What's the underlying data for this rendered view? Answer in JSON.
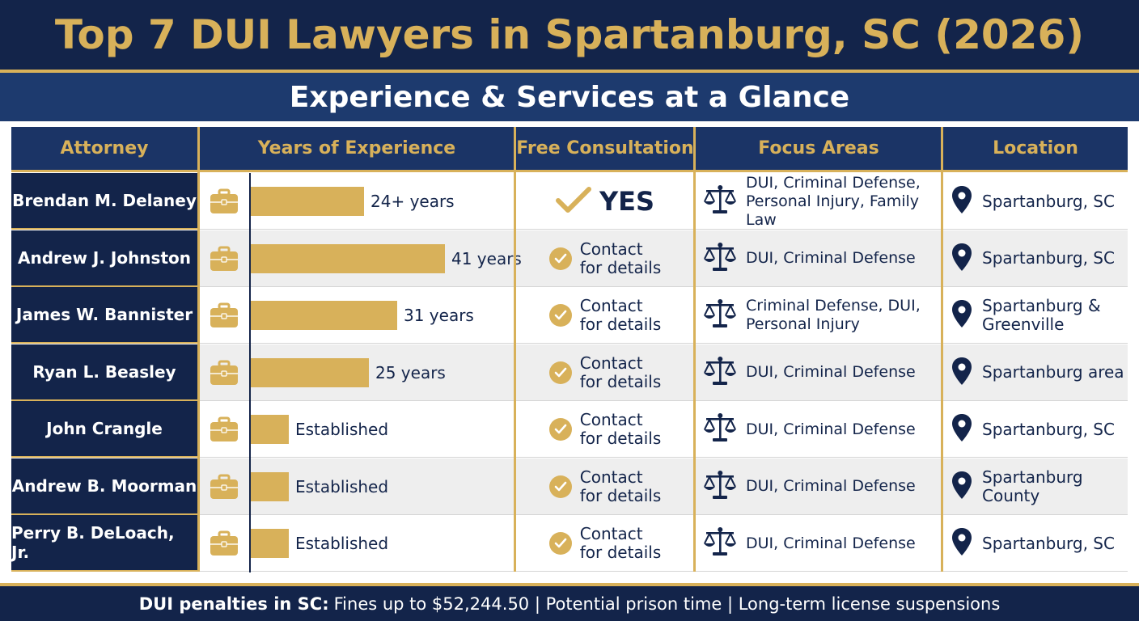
{
  "title": "Top 7 DUI Lawyers in Spartanburg, SC (2026)",
  "subtitle": "Experience & Services at a Glance",
  "colors": {
    "navy": "#13244a",
    "gold": "#d8b15a",
    "row_alt": "#eeeeee"
  },
  "table": {
    "headers": [
      "Attorney",
      "Years of Experience",
      "Free Consultation",
      "Focus Areas",
      "Location"
    ],
    "rows": [
      {
        "attorney": "Brendan M. Delaney",
        "years_label": "24+ years",
        "years_value": 24,
        "consult": [
          "YES"
        ],
        "consult_type": "yes",
        "focus": [
          "DUI, Criminal Defense,",
          "Personal Injury, Family Law"
        ],
        "location": [
          "Spartanburg, SC"
        ]
      },
      {
        "attorney": "Andrew J. Johnston",
        "years_label": "41 years",
        "years_value": 41,
        "consult": [
          "Contact",
          "for details"
        ],
        "consult_type": "contact",
        "focus": [
          "DUI, Criminal Defense"
        ],
        "location": [
          "Spartanburg, SC"
        ]
      },
      {
        "attorney": "James W. Bannister",
        "years_label": "31 years",
        "years_value": 31,
        "consult": [
          "Contact",
          "for details"
        ],
        "consult_type": "contact",
        "focus": [
          "Criminal Defense, DUI,",
          "Personal Injury"
        ],
        "location": [
          "Spartanburg &",
          "Greenville"
        ]
      },
      {
        "attorney": "Ryan L. Beasley",
        "years_label": "25 years",
        "years_value": 25,
        "consult": [
          "Contact",
          "for details"
        ],
        "consult_type": "contact",
        "focus": [
          "DUI, Criminal Defense"
        ],
        "location": [
          "Spartanburg area"
        ]
      },
      {
        "attorney": "John Crangle",
        "years_label": "Established",
        "years_value": 8,
        "consult": [
          "Contact",
          "for details"
        ],
        "consult_type": "contact",
        "focus": [
          "DUI, Criminal Defense"
        ],
        "location": [
          "Spartanburg, SC"
        ]
      },
      {
        "attorney": "Andrew B. Moorman",
        "years_label": "Established",
        "years_value": 8,
        "consult": [
          "Contact",
          "for details"
        ],
        "consult_type": "contact",
        "focus": [
          "DUI, Criminal Defense"
        ],
        "location": [
          "Spartanburg",
          "County"
        ]
      },
      {
        "attorney": "Perry B. DeLoach, Jr.",
        "years_label": "Established",
        "years_value": 8,
        "consult": [
          "Contact",
          "for details"
        ],
        "consult_type": "contact",
        "focus": [
          "DUI, Criminal Defense"
        ],
        "location": [
          "Spartanburg, SC"
        ]
      }
    ]
  },
  "footer": {
    "bold": "DUI penalties in SC:",
    "text": "Fines up to $52,244.50 | Potential prison time | Long-term license suspensions"
  },
  "icons": {
    "experience": "briefcase-icon",
    "consult_yes": "checkmark-icon",
    "consult_contact": "check-circle-icon",
    "focus": "scales-of-justice-icon",
    "location": "map-pin-icon"
  }
}
